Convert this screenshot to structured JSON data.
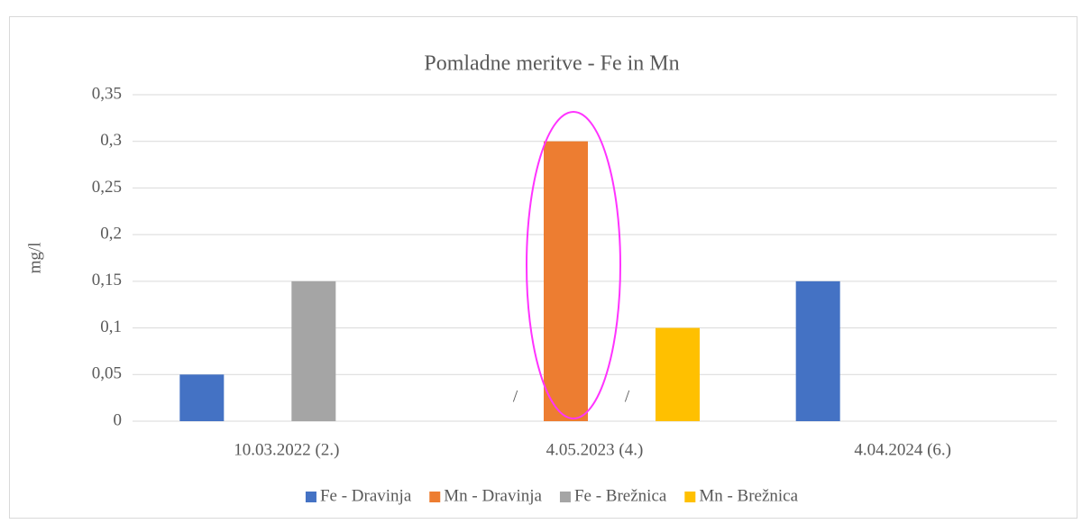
{
  "chart_data": {
    "type": "bar",
    "title": "Pomladne meritve - Fe in Mn",
    "ylabel": "mg/l",
    "categories": [
      "10.03.2022 (2.)",
      "4.05.2023 (4.)",
      "4.04.2024 (6.)"
    ],
    "series": [
      {
        "name": "Fe - Dravinja",
        "color": "#4472c4",
        "values": [
          0.05,
          null,
          0.15
        ],
        "value_labels": [
          null,
          "/",
          null
        ]
      },
      {
        "name": "Mn - Dravinja",
        "color": "#ed7d31",
        "values": [
          null,
          0.3,
          null
        ],
        "value_labels": [
          null,
          null,
          null
        ]
      },
      {
        "name": "Fe - Brežnica",
        "color": "#a5a5a5",
        "values": [
          0.15,
          null,
          null
        ],
        "value_labels": [
          null,
          "/",
          null
        ]
      },
      {
        "name": "Mn - Brežnica",
        "color": "#ffc000",
        "values": [
          null,
          0.1,
          null
        ],
        "value_labels": [
          null,
          null,
          null
        ]
      }
    ],
    "ylim": [
      0,
      0.35
    ],
    "yticks": [
      0,
      {
        "value": 0.05,
        "label": "0,05"
      },
      {
        "value": 0.1,
        "label": "0,1"
      },
      {
        "value": 0.15,
        "label": "0,15"
      },
      {
        "value": 0.2,
        "label": "0,2"
      },
      {
        "value": 0.25,
        "label": "0,25"
      },
      {
        "value": 0.3,
        "label": "0,3"
      },
      {
        "value": 0.35,
        "label": "0,35"
      }
    ],
    "grid": true,
    "legend": "bottom"
  }
}
